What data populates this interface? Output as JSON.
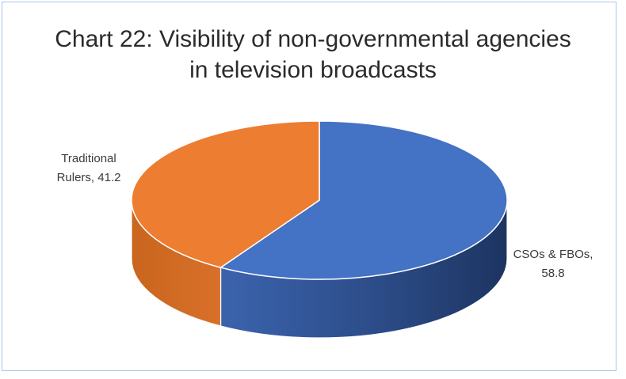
{
  "chart_data": {
    "type": "pie",
    "title_lines": [
      "Chart 22: Visibility of non-governmental agencies",
      "in television broadcasts"
    ],
    "slices": [
      {
        "label_lines": [
          "CSOs & FBOs,",
          "58.8"
        ],
        "value": 58.8,
        "color": "#4472c4"
      },
      {
        "label_lines": [
          "Traditional",
          "Rulers, 41.2"
        ],
        "value": 41.2,
        "color": "#ed7d31"
      }
    ],
    "legend": "none"
  }
}
